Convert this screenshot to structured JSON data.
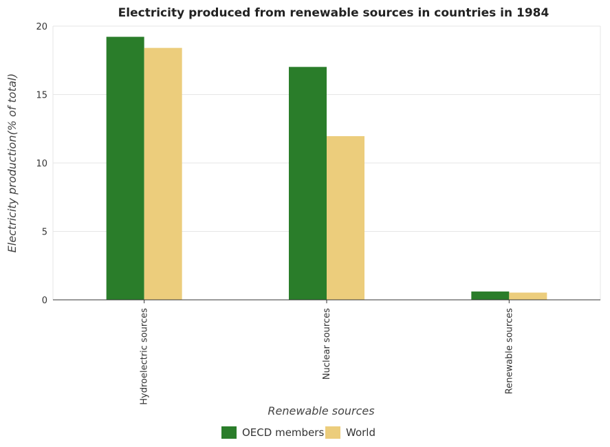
{
  "chart_data": {
    "type": "bar",
    "title": "Electricity produced from renewable sources in countries in 1984",
    "xlabel": "Renewable sources",
    "ylabel": "Electricity production(% of total)",
    "categories": [
      "Hydroelectric sources",
      "Nuclear sources",
      "Renewable sources"
    ],
    "series": [
      {
        "name": "OECD members",
        "color": "#2a7d2a",
        "values": [
          19.22,
          17.02,
          0.61
        ]
      },
      {
        "name": "World",
        "color": "#eccd7c",
        "values": [
          18.41,
          11.96,
          0.53
        ]
      }
    ],
    "ylim": [
      0,
      20
    ],
    "yticks": [
      "0",
      "5",
      "10",
      "15",
      "20"
    ],
    "grid": true,
    "legend_position": "bottom-center"
  }
}
